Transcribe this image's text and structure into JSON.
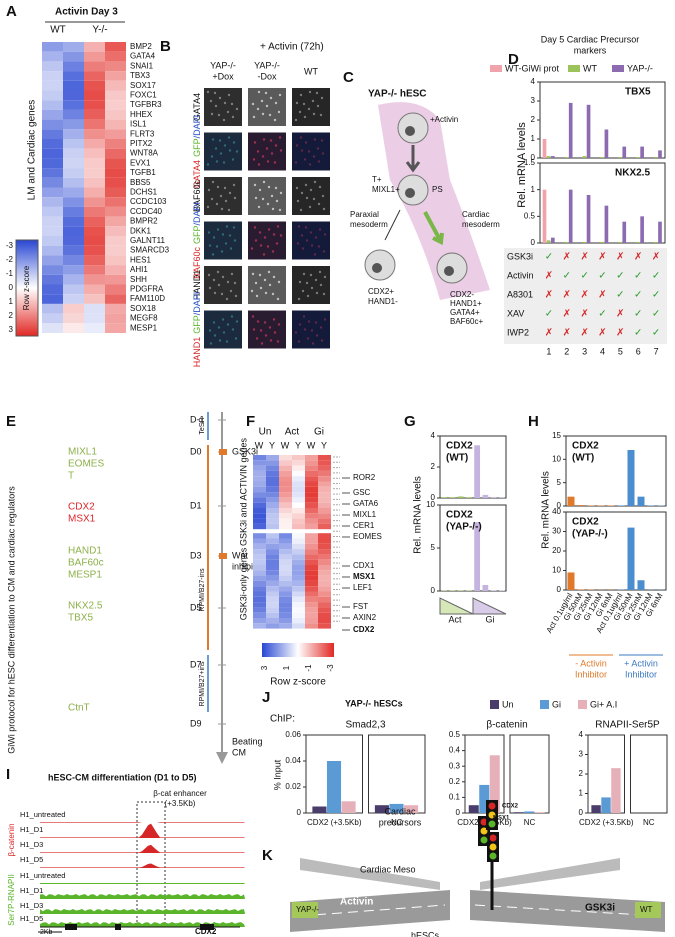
{
  "panels": {
    "A": {
      "letter": "A",
      "title": "Activin Day 3",
      "columns": [
        "WT",
        "Y-/-"
      ],
      "ylabel": "LM and Cardiac genes",
      "genes": [
        "BMP2",
        "GATA4",
        "SNAI1",
        "TBX3",
        "SOX17",
        "FOXC1",
        "TGFBR3",
        "HHEX",
        "ISL1",
        "FLRT3",
        "PITX2",
        "WNT8A",
        "EVX1",
        "TGFB1",
        "BBS5",
        "DCHS1",
        "CCDC103",
        "CCDC40",
        "BMPR2",
        "DKK1",
        "GALNT11",
        "SMARCD3",
        "HES1",
        "AHI1",
        "SHH",
        "PDGFRA",
        "FAM110D",
        "SOX18",
        "MEGF8",
        "MESP1"
      ],
      "legend_title": "Row z-score",
      "legend_ticks": [
        -3,
        -2,
        -1,
        0,
        1,
        2,
        3
      ]
    },
    "B": {
      "letter": "B",
      "title": "+ Activin (72h)",
      "columns": [
        [
          "YAP-/-",
          "+Dox"
        ],
        [
          "YAP-/-",
          "-Dox"
        ],
        [
          "WT"
        ]
      ],
      "rows": [
        [
          "GATA4"
        ],
        [
          "GATA4",
          "GFP",
          "/DAPI"
        ],
        [
          "BAF60c"
        ],
        [
          "BAF60c",
          "GFP",
          "/DAPI"
        ],
        [
          "HAND1"
        ],
        [
          "HAND1",
          "GFP",
          "/DAPI"
        ]
      ]
    },
    "C": {
      "letter": "C",
      "title": "YAP-/- hESC",
      "activin": "+Activin",
      "ps": "PS",
      "t": [
        "T+",
        "MIXL1+"
      ],
      "paraxial": [
        "Paraxial",
        "mesoderm"
      ],
      "cardiac": [
        "Cardiac",
        "mesoderm"
      ],
      "left_cell": [
        "CDX2+",
        "HAND1-"
      ],
      "right_cell": [
        "CDX2-",
        "HAND1+",
        "GATA4+",
        "BAF60c+"
      ]
    },
    "D": {
      "letter": "D",
      "title": [
        "Day 5 Cardiac Precursor",
        "markers"
      ],
      "ylabel": "Rel. mRNA levels",
      "treatments": [
        {
          "name": "GSK3i",
          "marks": [
            "✓",
            "✗",
            "✗",
            "✗",
            "✗",
            "✗",
            "✗"
          ]
        },
        {
          "name": "Activin",
          "marks": [
            "✗",
            "✓",
            "✓",
            "✓",
            "✓",
            "✓",
            "✓"
          ]
        },
        {
          "name": "A8301",
          "marks": [
            "✗",
            "✗",
            "✗",
            "✗",
            "✓",
            "✓",
            "✓"
          ]
        },
        {
          "name": "XAV",
          "marks": [
            "✓",
            "✗",
            "✗",
            "✓",
            "✗",
            "✓",
            "✓"
          ]
        },
        {
          "name": "IWP2",
          "marks": [
            "✗",
            "✗",
            "✗",
            "✗",
            "✗",
            "✓",
            "✓"
          ]
        }
      ],
      "columns": [
        1,
        2,
        3,
        4,
        5,
        6,
        7
      ]
    },
    "E": {
      "letter": "E",
      "ylabel": "GiWi protocol for hESC differentiation to CM and cardiac regulators",
      "days": [
        "D-1",
        "D0",
        "D1",
        "D3",
        "D5",
        "D7",
        "D9"
      ],
      "media": [
        "TeSR",
        "RPMI/B27-ins",
        "RPMI/B27+ins"
      ],
      "gsk3i": "GSK3i",
      "wnt": [
        "Wnt",
        "inhibitor"
      ],
      "beating": [
        "Beating",
        "CM"
      ],
      "genes": [
        {
          "lines": [
            "MIXL1",
            "EOMES",
            "T"
          ],
          "color": "#8db04a"
        },
        {
          "lines": [
            "CDX2",
            "MSX1"
          ],
          "color": "#e0262b"
        },
        {
          "lines": [
            "HAND1",
            "BAF60c",
            "MESP1"
          ],
          "color": "#8db04a"
        },
        {
          "lines": [
            "NKX2.5",
            "TBX5"
          ],
          "color": "#8db04a"
        },
        {
          "lines": [
            "CtnT"
          ],
          "color": "#8db04a"
        }
      ]
    },
    "F": {
      "letter": "F",
      "columns": [
        "Un",
        "Act",
        "Gi"
      ],
      "subcolumns": [
        "W",
        "Y",
        "W",
        "Y",
        "W",
        "Y"
      ],
      "groups": [
        "GSK3i and ACTIVIN genes",
        "GSK3i-only genes"
      ],
      "genes": [
        {
          "name": "ROR2",
          "bold": false
        },
        {
          "name": "GSC",
          "bold": false
        },
        {
          "name": "GATA6",
          "bold": false
        },
        {
          "name": "MIXL1",
          "bold": false
        },
        {
          "name": "CER1",
          "bold": false
        },
        {
          "name": "EOMES",
          "bold": false
        },
        {
          "name": "CDX1",
          "bold": false
        },
        {
          "name": "MSX1",
          "bold": true
        },
        {
          "name": "LEF1",
          "bold": false
        },
        {
          "name": "FST",
          "bold": false
        },
        {
          "name": "AXIN2",
          "bold": false
        },
        {
          "name": "CDX2",
          "bold": true
        }
      ],
      "legend_title": "Row z-score",
      "legend_ticks": [
        3,
        1,
        -1,
        -3
      ]
    },
    "G": {
      "letter": "G",
      "ylabel": "Rel. mRNA levels",
      "bottom": [
        "Act",
        "Gi"
      ]
    },
    "H": {
      "letter": "H",
      "ylabel": "Rel. mRNA levels",
      "groups": [
        {
          "lines": [
            "- Activin",
            "Inhibitor"
          ],
          "color": "#e07a2a"
        },
        {
          "lines": [
            "+ Activin",
            "Inhibitor"
          ],
          "color": "#3a78c2"
        }
      ]
    },
    "I": {
      "letter": "I",
      "title": "hESC-CM differentiation (D1 to D5)",
      "enhancer": [
        "β-cat enhancer",
        "(+3.5Kb)"
      ],
      "tracks": [
        "H1_untreated",
        "H1_D1",
        "H1_D3",
        "H1_D5",
        "H1_untreated",
        "H1_D1",
        "H1_D3",
        "H1_D5"
      ],
      "groups": [
        {
          "name": "β-catenin",
          "color": "#d62728"
        },
        {
          "name": "Ser7P-RNAPII",
          "color": "#5ab52a"
        }
      ],
      "scale": "2Kb",
      "gene": "CDX2"
    },
    "J": {
      "letter": "J",
      "title": "YAP-/- hESCs",
      "chip": "ChIP:",
      "ylabel": "% Input"
    },
    "K": {
      "letter": "K",
      "precursors": [
        "Cardiac",
        "precursors"
      ],
      "meso": "Cardiac Meso",
      "hesc": "hESCs",
      "yap": "YAP-/-",
      "activin": "Activin",
      "gsk3i": "GSK3i",
      "wt": "WT",
      "light1": "CDX2",
      "light2": "MSX1"
    }
  },
  "chart_data": [
    {
      "type": "bar",
      "title": "TBX5",
      "ylim": [
        0,
        4
      ],
      "yticks": [
        0,
        1,
        2,
        3,
        4
      ],
      "series": [
        {
          "name": "WT-GiWi prot",
          "color": "#f0a3aa",
          "values": [
            1.0,
            0,
            0,
            0,
            0,
            0,
            0
          ]
        },
        {
          "name": "WT",
          "color": "#9cc25a",
          "values": [
            0.1,
            0.05,
            0.1,
            0.05,
            0.05,
            0.05,
            0.05
          ]
        },
        {
          "name": "YAP-/-",
          "color": "#8c6bb1",
          "values": [
            0.1,
            2.9,
            2.8,
            1.5,
            0.6,
            0.6,
            0.4
          ]
        }
      ]
    },
    {
      "type": "bar",
      "title": "NKX2.5",
      "ylim": [
        0,
        1.5
      ],
      "yticks": [
        0,
        0.5,
        1,
        1.5
      ],
      "series": [
        {
          "color": "#f0a3aa",
          "values": [
            1.0,
            0,
            0,
            0,
            0,
            0,
            0
          ]
        },
        {
          "color": "#9cc25a",
          "values": [
            0.05,
            0.02,
            0.02,
            0.02,
            0.02,
            0.02,
            0.02
          ]
        },
        {
          "color": "#8c6bb1",
          "values": [
            0.1,
            1.0,
            0.9,
            0.7,
            0.4,
            0.5,
            0.4
          ]
        }
      ]
    },
    {
      "type": "bar",
      "title": "CDX2",
      "subtitle": "(WT)",
      "ylim": [
        0,
        4
      ],
      "yticks": [
        0,
        2,
        4
      ],
      "values": [
        0.05,
        0.05,
        0.1,
        0.05,
        3.4,
        0.2,
        0.05,
        0.05
      ],
      "colors": [
        "#9cc25a",
        "#9cc25a",
        "#9cc25a",
        "#9cc25a",
        "#c5b3e0",
        "#c5b3e0",
        "#c5b3e0",
        "#c5b3e0"
      ]
    },
    {
      "type": "bar",
      "title": "CDX2",
      "subtitle": "(YAP-/-)",
      "ylim": [
        0,
        10
      ],
      "yticks": [
        0,
        5,
        10
      ],
      "values": [
        0.05,
        0.05,
        0.05,
        0.05,
        8,
        0.7,
        0.05,
        0.05
      ],
      "colors": [
        "#9cc25a",
        "#9cc25a",
        "#9cc25a",
        "#9cc25a",
        "#c5b3e0",
        "#c5b3e0",
        "#c5b3e0",
        "#c5b3e0"
      ]
    },
    {
      "type": "bar",
      "title": "CDX2",
      "subtitle": "(WT)",
      "ylim": [
        0,
        15
      ],
      "yticks": [
        0,
        5,
        10,
        15
      ],
      "values": [
        2,
        0.2,
        0.1,
        0.1,
        0.1,
        0.1,
        12,
        2,
        0.1,
        0.1
      ],
      "colors": [
        "#e07a2a",
        "#e07a2a",
        "#e07a2a",
        "#e07a2a",
        "#e07a2a",
        "#4a8ed0",
        "#4a8ed0",
        "#4a8ed0",
        "#4a8ed0",
        "#4a8ed0"
      ]
    },
    {
      "type": "bar",
      "title": "CDX2",
      "subtitle": "(YAP-/-)",
      "ylim": [
        0,
        40
      ],
      "yticks": [
        0,
        10,
        20,
        30,
        40
      ],
      "categories": [
        "Act 0.1ug/ml",
        "Gi 50nM",
        "Gi 25nM",
        "Gi 12nM",
        "Gi 6nM",
        "Act 0.1ug/ml",
        "Gi 50nM",
        "Gi 25nM",
        "Gi 12nM",
        "Gi 6nM"
      ],
      "values": [
        9,
        0.3,
        0.2,
        0.1,
        0.1,
        0.2,
        32,
        5,
        0.1,
        0.1
      ],
      "colors": [
        "#e07a2a",
        "#e07a2a",
        "#e07a2a",
        "#e07a2a",
        "#e07a2a",
        "#4a8ed0",
        "#4a8ed0",
        "#4a8ed0",
        "#4a8ed0",
        "#4a8ed0"
      ]
    },
    {
      "type": "bar",
      "title": "Smad2,3",
      "ylim": [
        0,
        0.06
      ],
      "yticks": [
        0,
        0.02,
        0.04,
        0.06
      ],
      "categories": [
        "CDX2 (+3.5Kb)",
        "NC"
      ],
      "series": [
        {
          "name": "Un",
          "color": "#4a3d6b",
          "values": [
            0.005,
            0.006
          ]
        },
        {
          "name": "Gi",
          "color": "#5b9bd5",
          "values": [
            0.04,
            0.007
          ]
        },
        {
          "name": "Gi+ A.I",
          "color": "#e6b0b8",
          "values": [
            0.009,
            0.006
          ]
        }
      ]
    },
    {
      "type": "bar",
      "title": "β-catenin",
      "ylim": [
        0,
        0.5
      ],
      "yticks": [
        0,
        0.1,
        0.2,
        0.3,
        0.4,
        0.5
      ],
      "categories": [
        "CDX2 (+3.5Kb)",
        "NC"
      ],
      "series": [
        {
          "color": "#4a3d6b",
          "values": [
            0.05,
            0.005
          ]
        },
        {
          "color": "#5b9bd5",
          "values": [
            0.18,
            0.01
          ]
        },
        {
          "color": "#e6b0b8",
          "values": [
            0.37,
            0.005
          ]
        }
      ]
    },
    {
      "type": "bar",
      "title": "RNAPII-Ser5P",
      "ylim": [
        0,
        4
      ],
      "yticks": [
        0,
        1,
        2,
        3,
        4
      ],
      "categories": [
        "CDX2 (+3.5Kb)",
        "NC"
      ],
      "series": [
        {
          "color": "#4a3d6b",
          "values": [
            0.4,
            0
          ]
        },
        {
          "color": "#5b9bd5",
          "values": [
            0.8,
            0
          ]
        },
        {
          "color": "#e6b0b8",
          "values": [
            2.3,
            0
          ]
        }
      ]
    }
  ]
}
